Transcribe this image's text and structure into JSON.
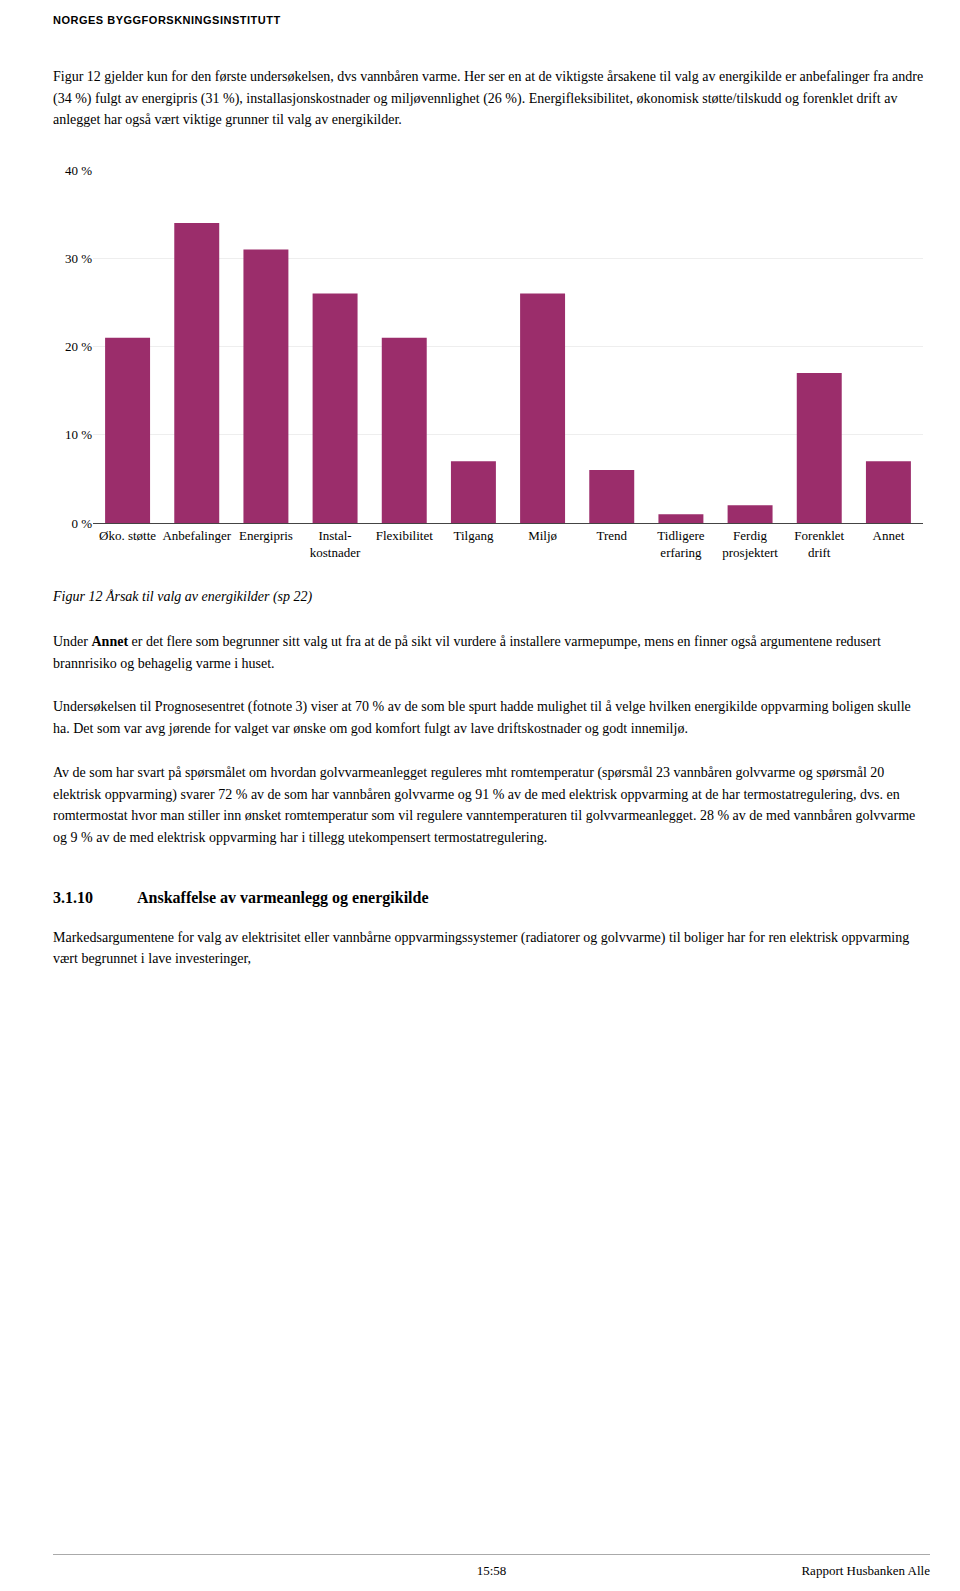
{
  "chart_data": {
    "type": "bar",
    "title": "Figur 12 Årsak til valg av energikilder (sp 22)",
    "categories": [
      "Øko. støtte",
      "Anbefalinger",
      "Energipris",
      "Instal-\nkostnader",
      "Flexibilitet",
      "Tilgang",
      "Miljø",
      "Trend",
      "Tidligere\nerfaring",
      "Ferdig\nprosjektert",
      "Forenklet\ndrift",
      "Annet"
    ],
    "values": [
      21,
      34,
      31,
      26,
      21,
      7,
      26,
      6,
      1,
      2,
      17,
      7
    ],
    "color": "#9B2D6B",
    "ylim": [
      0,
      40
    ],
    "yticks": [
      {
        "value": 0,
        "label": "0 %"
      },
      {
        "value": 10,
        "label": "10 %"
      },
      {
        "value": 20,
        "label": "20 %"
      },
      {
        "value": 30,
        "label": "30 %"
      },
      {
        "value": 40,
        "label": "40 %"
      }
    ],
    "grid": true,
    "annotations": [
      "NORGES BYGGFORSKNINGSINSTITUTT",
      "Figur 12 gjelder kun for den første undersøkelsen, dvs vannbåren varme. Her ser en at de viktigste årsakene til valg av energikilde er anbefalinger fra andre (34 %) fulgt av energipris (31 %), installasjonskostnader og miljøvennlighet (26 %). Energifleksibilitet, økonomisk støtte/tilskudd og forenklet drift av anlegget har også vært viktige grunner til valg av energikilder.",
      "Under ",
      "Annet",
      " er det flere som begrunner sitt valg ut fra at de på sikt vil vurdere å installere varmepumpe, mens en finner også argumentene redusert brannrisiko og behagelig varme i huset.",
      "Undersøkelsen til Prognosesentret (fotnote 3) viser at 70 % av de som ble spurt hadde mulighet til å velge hvilken energikilde oppvarming boligen skulle ha. Det som var avg jørende for valget var ønske om god komfort fulgt av lave driftskostnader og godt innemiljø.",
      "Av de som har svart på spørsmålet om hvordan golvvarmeanlegget reguleres mht romtemperatur (spørsmål 23 vannbåren golvvarme og spørsmål 20 elektrisk oppvarming) svarer 72 % av de som har vannbåren golvvarme og 91 % av de med elektrisk oppvarming at de har termostatregulering, dvs. en romtermostat hvor man stiller inn ønsket romtemperatur som vil regulere vanntemperaturen til golvvarmeanlegget. 28 % av de med vannbåren golvvarme og 9 % av de med elektrisk oppvarming har i tillegg utekompensert termostatregulering.",
      "3.1.10",
      "Anskaffelse av varmeanlegg og energikilde",
      "Markedsargumentene for valg av elektrisitet eller vannbårne oppvarmingssystemer (radiatorer og golvvarme) til boliger har for ren elektrisk oppvarming vært begrunnet i lave investeringer,",
      "15:58",
      "Rapport Husbanken Alle"
    ]
  }
}
